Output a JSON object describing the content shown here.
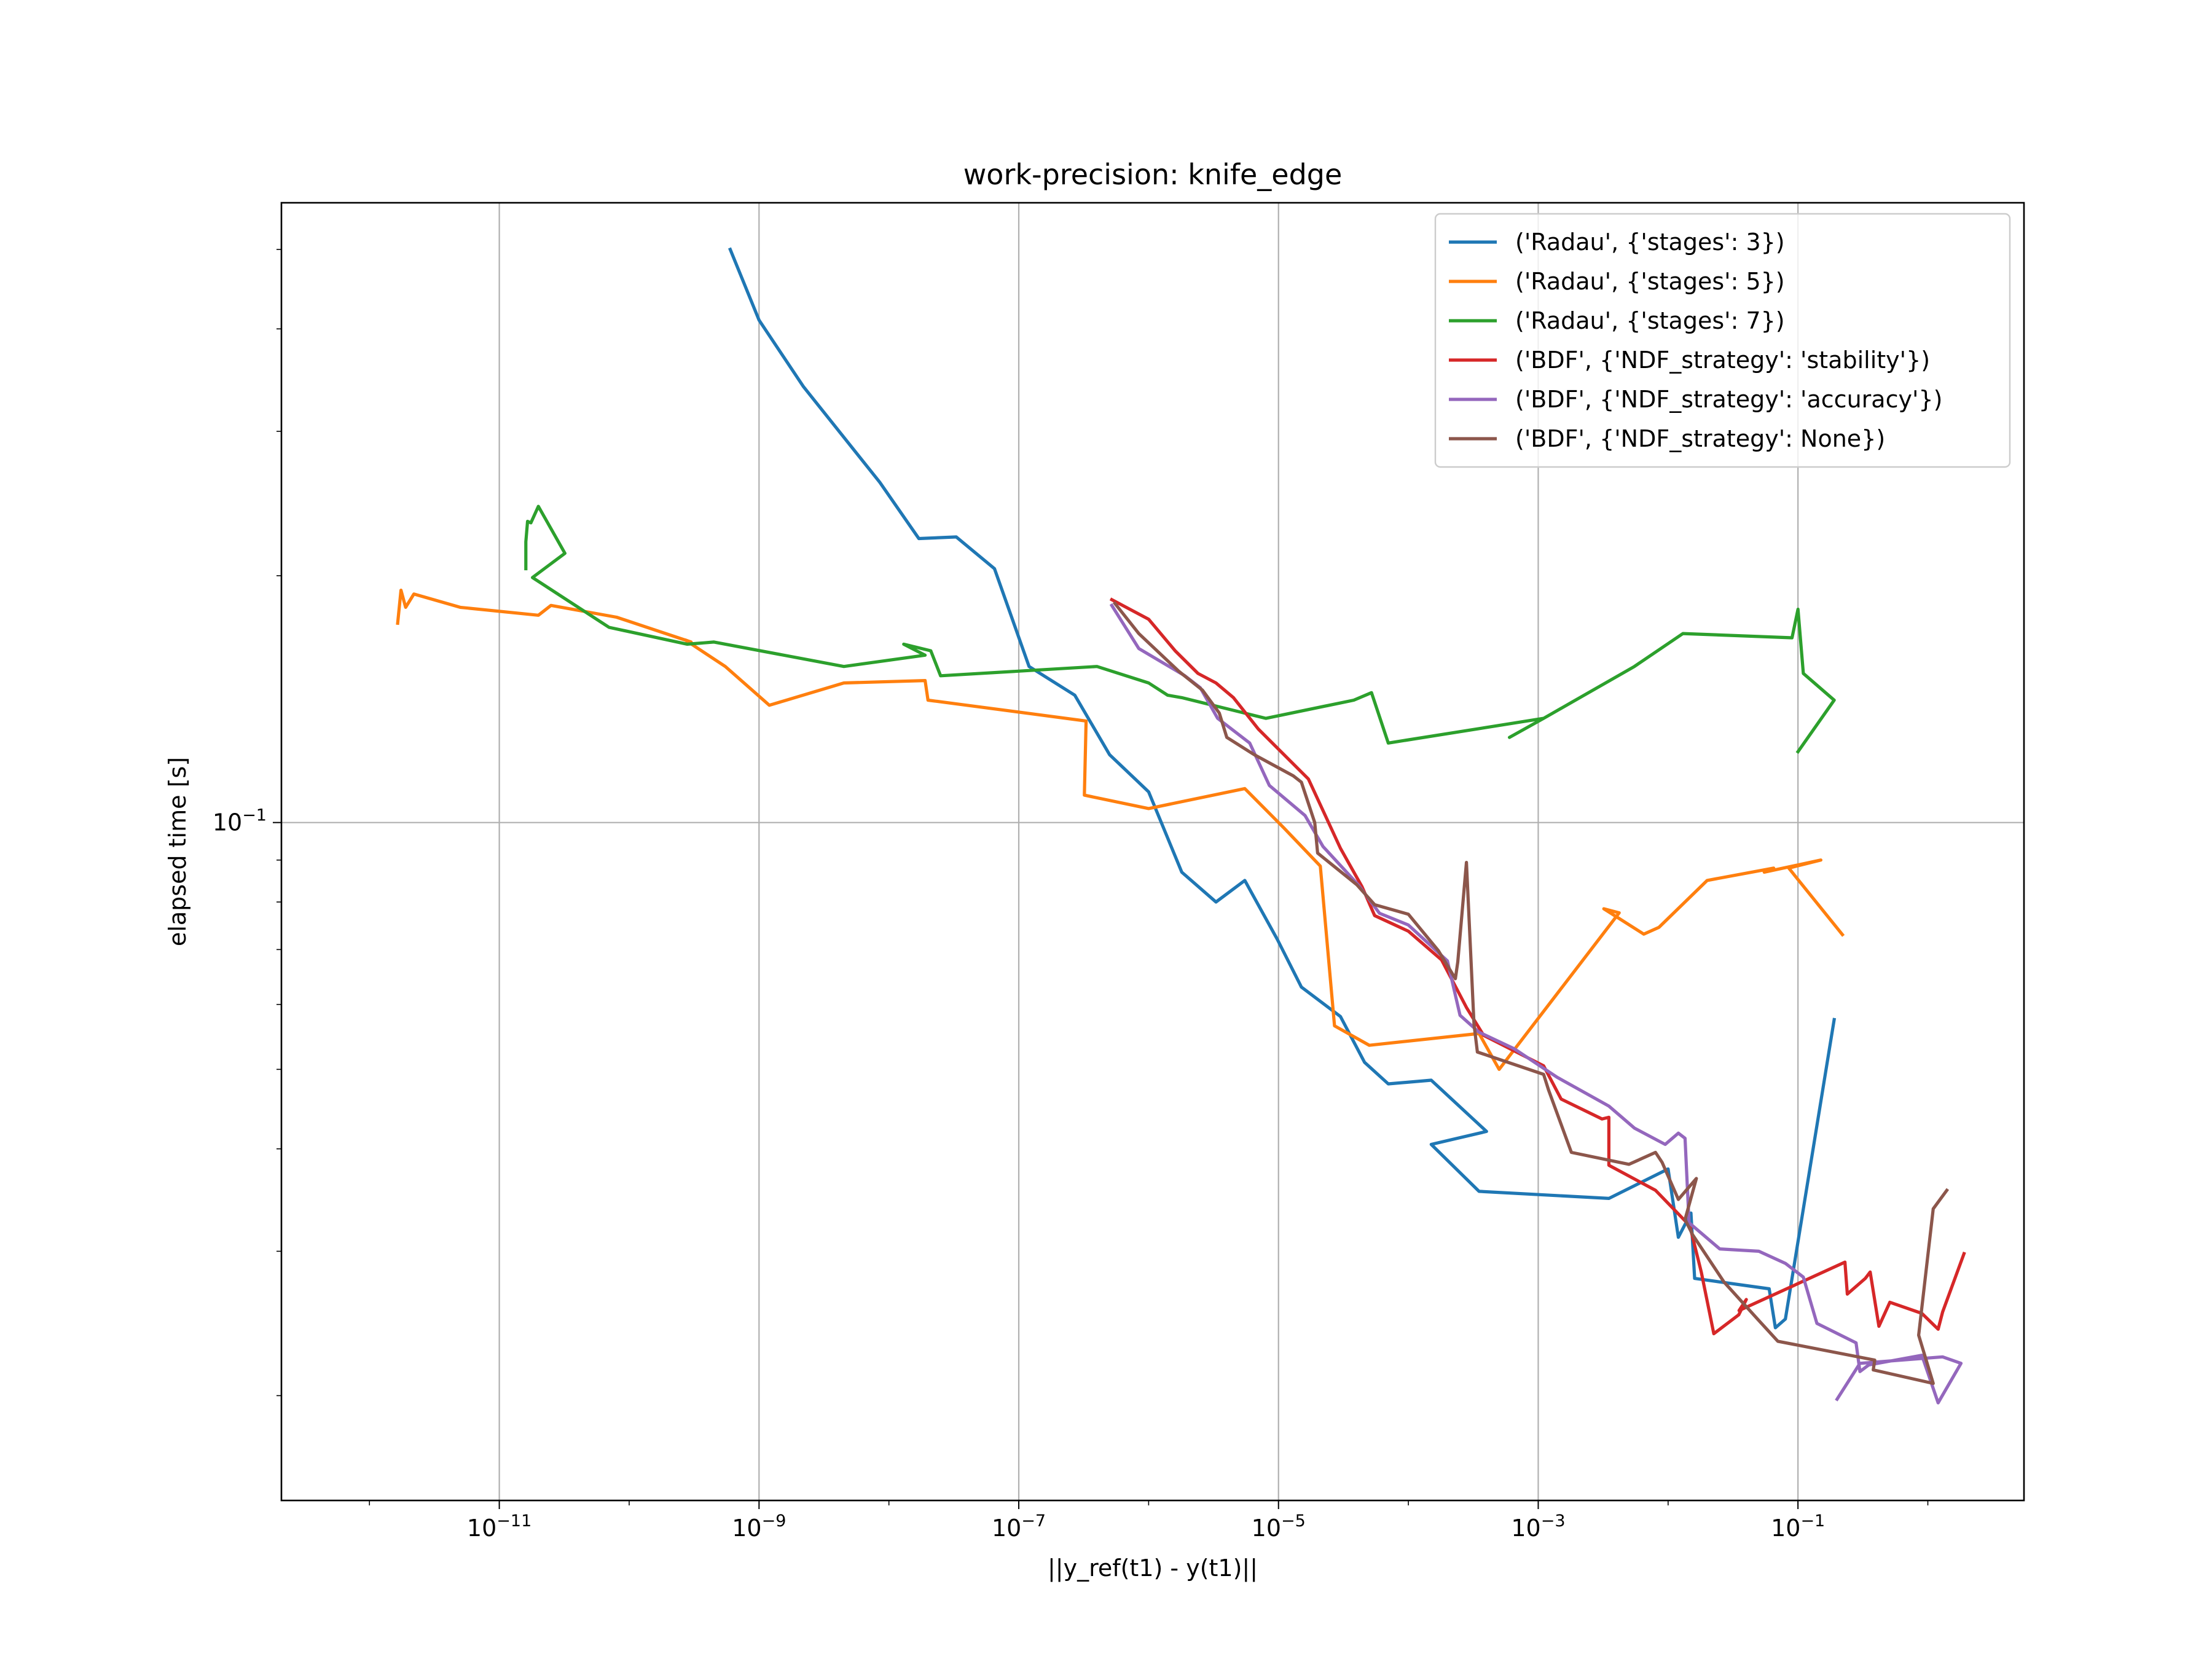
{
  "chart_data": {
    "type": "line",
    "title": "work-precision: knife_edge",
    "xlabel": "||y_ref(t1) - y(t1)||",
    "ylabel": "elapsed time [s]",
    "x_scale": "log",
    "y_scale": "log",
    "xlim": [
      2.1e-13,
      5.5
    ],
    "ylim": [
      0.0149,
      0.57
    ],
    "grid": true,
    "legend_position": "upper right",
    "x_ticks": [
      {
        "value": 1e-11,
        "base": "10",
        "exp": "−11"
      },
      {
        "value": 1e-09,
        "base": "10",
        "exp": "−9"
      },
      {
        "value": 1e-07,
        "base": "10",
        "exp": "−7"
      },
      {
        "value": 1e-05,
        "base": "10",
        "exp": "−5"
      },
      {
        "value": 0.001,
        "base": "10",
        "exp": "−3"
      },
      {
        "value": 0.1,
        "base": "10",
        "exp": "−1"
      }
    ],
    "y_ticks": [
      {
        "value": 0.1,
        "base": "10",
        "exp": "−1"
      }
    ],
    "series": [
      {
        "name": "('Radau', {'stages': 3})",
        "color": "#1f77b4",
        "points": [
          [
            6e-10,
            0.5
          ],
          [
            1e-09,
            0.41
          ],
          [
            2.2e-09,
            0.34
          ],
          [
            8.5e-09,
            0.26
          ],
          [
            1.7e-08,
            0.222
          ],
          [
            3.3e-08,
            0.223
          ],
          [
            6.5e-08,
            0.204
          ],
          [
            1.2e-07,
            0.155
          ],
          [
            2.7e-07,
            0.143
          ],
          [
            5e-07,
            0.121
          ],
          [
            1e-06,
            0.109
          ],
          [
            1.8e-06,
            0.087
          ],
          [
            3.3e-06,
            0.08
          ],
          [
            5.5e-06,
            0.085
          ],
          [
            9.8e-06,
            0.072
          ],
          [
            1.5e-05,
            0.063
          ],
          [
            3e-05,
            0.058
          ],
          [
            4.6e-05,
            0.051
          ],
          [
            7e-05,
            0.048
          ],
          [
            0.00015,
            0.0485
          ],
          [
            0.0004,
            0.042
          ],
          [
            0.00015,
            0.0405
          ],
          [
            0.00035,
            0.0355
          ],
          [
            0.0035,
            0.0348
          ],
          [
            0.01,
            0.0378
          ],
          [
            0.012,
            0.0312
          ],
          [
            0.015,
            0.0334
          ],
          [
            0.016,
            0.0278
          ],
          [
            0.06,
            0.027
          ],
          [
            0.067,
            0.0242
          ],
          [
            0.08,
            0.0248
          ],
          [
            0.19,
            0.0575
          ]
        ]
      },
      {
        "name": "('Radau', {'stages': 5})",
        "color": "#ff7f0e",
        "points": [
          [
            1.65e-12,
            0.175
          ],
          [
            1.75e-12,
            0.192
          ],
          [
            1.9e-12,
            0.183
          ],
          [
            2.2e-12,
            0.19
          ],
          [
            5e-12,
            0.183
          ],
          [
            2e-11,
            0.179
          ],
          [
            2.5e-11,
            0.184
          ],
          [
            8e-11,
            0.178
          ],
          [
            3e-10,
            0.166
          ],
          [
            2.7e-10,
            0.167
          ],
          [
            5.5e-10,
            0.155
          ],
          [
            1.2e-09,
            0.139
          ],
          [
            4.5e-09,
            0.148
          ],
          [
            1.9e-08,
            0.149
          ],
          [
            2e-08,
            0.141
          ],
          [
            3.3e-07,
            0.133
          ],
          [
            3.2e-07,
            0.108
          ],
          [
            1e-06,
            0.104
          ],
          [
            5.5e-06,
            0.11
          ],
          [
            1.1e-05,
            0.0985
          ],
          [
            2.1e-05,
            0.0885
          ],
          [
            2.7e-05,
            0.0565
          ],
          [
            5e-05,
            0.0535
          ],
          [
            0.00035,
            0.0553
          ],
          [
            0.0005,
            0.05
          ],
          [
            0.0042,
            0.0776
          ],
          [
            0.0032,
            0.0785
          ],
          [
            0.0065,
            0.0731
          ],
          [
            0.0085,
            0.0745
          ],
          [
            0.02,
            0.085
          ],
          [
            0.065,
            0.088
          ],
          [
            0.055,
            0.087
          ],
          [
            0.15,
            0.09
          ],
          [
            0.085,
            0.088
          ],
          [
            0.22,
            0.073
          ]
        ]
      },
      {
        "name": "('Radau', {'stages': 7})",
        "color": "#2ca02c",
        "points": [
          [
            1.6e-11,
            0.204
          ],
          [
            1.6e-11,
            0.22
          ],
          [
            1.65e-11,
            0.233
          ],
          [
            1.75e-11,
            0.232
          ],
          [
            2e-11,
            0.243
          ],
          [
            3.2e-11,
            0.213
          ],
          [
            1.8e-11,
            0.199
          ],
          [
            7e-11,
            0.173
          ],
          [
            2.8e-10,
            0.165
          ],
          [
            4.5e-10,
            0.166
          ],
          [
            4.5e-09,
            0.155
          ],
          [
            1.9e-08,
            0.16
          ],
          [
            1.3e-08,
            0.165
          ],
          [
            2.1e-08,
            0.162
          ],
          [
            2.5e-08,
            0.151
          ],
          [
            4e-07,
            0.155
          ],
          [
            1e-06,
            0.148
          ],
          [
            1.4e-06,
            0.143
          ],
          [
            1.8e-06,
            0.142
          ],
          [
            8e-06,
            0.134
          ],
          [
            3.8e-05,
            0.141
          ],
          [
            5.2e-05,
            0.144
          ],
          [
            7e-05,
            0.125
          ],
          [
            0.0011,
            0.134
          ],
          [
            0.0006,
            0.127
          ],
          [
            0.0011,
            0.134
          ],
          [
            0.0055,
            0.155
          ],
          [
            0.013,
            0.17
          ],
          [
            0.09,
            0.168
          ],
          [
            0.1,
            0.182
          ],
          [
            0.11,
            0.152
          ],
          [
            0.19,
            0.141
          ],
          [
            0.1,
            0.122
          ]
        ]
      },
      {
        "name": "('BDF', {'NDF_strategy': 'stability'})",
        "color": "#d62728",
        "points": [
          [
            5.2e-07,
            0.187
          ],
          [
            1e-06,
            0.177
          ],
          [
            1.6e-06,
            0.162
          ],
          [
            2.4e-06,
            0.152
          ],
          [
            3.3e-06,
            0.148
          ],
          [
            4.5e-06,
            0.142
          ],
          [
            7e-06,
            0.13
          ],
          [
            1.7e-05,
            0.113
          ],
          [
            3e-05,
            0.093
          ],
          [
            4.4e-05,
            0.0835
          ],
          [
            5.5e-05,
            0.077
          ],
          [
            0.0001,
            0.0737
          ],
          [
            0.00018,
            0.068
          ],
          [
            0.00028,
            0.0595
          ],
          [
            0.00038,
            0.055
          ],
          [
            0.0011,
            0.0505
          ],
          [
            0.0015,
            0.046
          ],
          [
            0.0031,
            0.0435
          ],
          [
            0.0035,
            0.0437
          ],
          [
            0.0035,
            0.0382
          ],
          [
            0.008,
            0.0356
          ],
          [
            0.0137,
            0.0326
          ],
          [
            0.0145,
            0.0325
          ],
          [
            0.018,
            0.0283
          ],
          [
            0.0225,
            0.0238
          ],
          [
            0.035,
            0.0251
          ],
          [
            0.04,
            0.0262
          ],
          [
            0.0352,
            0.0254
          ],
          [
            0.23,
            0.0291
          ],
          [
            0.24,
            0.0266
          ],
          [
            0.33,
            0.0278
          ],
          [
            0.36,
            0.0283
          ],
          [
            0.42,
            0.0243
          ],
          [
            0.51,
            0.026
          ],
          [
            0.9,
            0.0252
          ],
          [
            1.2,
            0.0241
          ],
          [
            1.3,
            0.0253
          ],
          [
            1.9,
            0.0298
          ]
        ]
      },
      {
        "name": "('BDF', {'NDF_strategy': 'accuracy'})",
        "color": "#9467bd",
        "points": [
          [
            5.2e-07,
            0.184
          ],
          [
            8.4e-07,
            0.163
          ],
          [
            1.9e-06,
            0.151
          ],
          [
            2.5e-06,
            0.146
          ],
          [
            3.4e-06,
            0.134
          ],
          [
            6e-06,
            0.125
          ],
          [
            8.5e-06,
            0.111
          ],
          [
            1.6e-05,
            0.102
          ],
          [
            2.2e-05,
            0.0935
          ],
          [
            4.1e-05,
            0.084
          ],
          [
            6e-05,
            0.0775
          ],
          [
            0.0001,
            0.075
          ],
          [
            0.0002,
            0.0678
          ],
          [
            0.00025,
            0.0582
          ],
          [
            0.00035,
            0.0555
          ],
          [
            0.00065,
            0.053
          ],
          [
            0.0014,
            0.0489
          ],
          [
            0.0035,
            0.0451
          ],
          [
            0.0055,
            0.0424
          ],
          [
            0.0095,
            0.0405
          ],
          [
            0.012,
            0.0418
          ],
          [
            0.0135,
            0.0412
          ],
          [
            0.0145,
            0.0325
          ],
          [
            0.025,
            0.0302
          ],
          [
            0.05,
            0.03
          ],
          [
            0.08,
            0.029
          ],
          [
            0.11,
            0.0279
          ],
          [
            0.14,
            0.0245
          ],
          [
            0.28,
            0.0232
          ],
          [
            0.3,
            0.0214
          ],
          [
            0.35,
            0.0218
          ],
          [
            0.9,
            0.0224
          ],
          [
            1.2,
            0.0196
          ],
          [
            1.8,
            0.0219
          ],
          [
            1.3,
            0.0223
          ],
          [
            0.3,
            0.0219
          ],
          [
            0.2,
            0.0198
          ]
        ]
      },
      {
        "name": "('BDF', {'NDF_strategy': None})",
        "color": "#8c564b",
        "points": [
          [
            5.5e-07,
            0.185
          ],
          [
            8.4e-07,
            0.17
          ],
          [
            1.7e-06,
            0.153
          ],
          [
            2.6e-06,
            0.145
          ],
          [
            3.5e-06,
            0.136
          ],
          [
            4e-06,
            0.127
          ],
          [
            6.5e-06,
            0.121
          ],
          [
            1.3e-05,
            0.114
          ],
          [
            1.5e-05,
            0.112
          ],
          [
            1.9e-05,
            0.1
          ],
          [
            2e-05,
            0.0918
          ],
          [
            4e-05,
            0.084
          ],
          [
            5.5e-05,
            0.0794
          ],
          [
            0.0001,
            0.0773
          ],
          [
            0.00017,
            0.0698
          ],
          [
            0.00023,
            0.0645
          ],
          [
            0.00024,
            0.0676
          ],
          [
            0.00028,
            0.0894
          ],
          [
            0.00032,
            0.0568
          ],
          [
            0.00034,
            0.0525
          ],
          [
            0.0011,
            0.0493
          ],
          [
            0.0012,
            0.0472
          ],
          [
            0.0018,
            0.0396
          ],
          [
            0.005,
            0.0383
          ],
          [
            0.008,
            0.0396
          ],
          [
            0.009,
            0.0385
          ],
          [
            0.012,
            0.0347
          ],
          [
            0.0165,
            0.0368
          ],
          [
            0.0135,
            0.0328
          ],
          [
            0.0155,
            0.0314
          ],
          [
            0.027,
            0.0275
          ],
          [
            0.05,
            0.0247
          ],
          [
            0.07,
            0.0233
          ],
          [
            0.39,
            0.0221
          ],
          [
            0.38,
            0.0215
          ],
          [
            1.1,
            0.0207
          ],
          [
            0.85,
            0.0237
          ],
          [
            1.1,
            0.0338
          ],
          [
            1.4,
            0.0356
          ]
        ]
      }
    ]
  }
}
